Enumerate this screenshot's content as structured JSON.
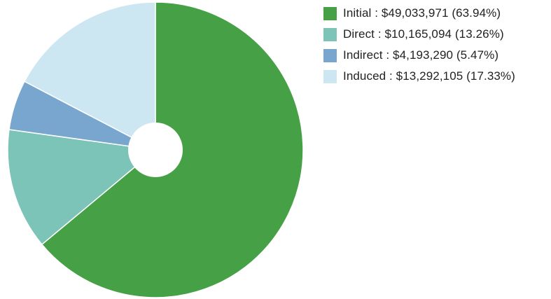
{
  "chart_data": {
    "type": "pie",
    "donut": true,
    "legend_position": "top-right",
    "categories": [
      "Initial",
      "Direct",
      "Indirect",
      "Induced"
    ],
    "values": [
      49033971,
      10165094,
      4193290,
      13292105
    ],
    "percents": [
      63.94,
      13.26,
      5.47,
      17.33
    ],
    "colors": [
      "#45a046",
      "#7cc3b8",
      "#79a6cf",
      "#cce7f2"
    ],
    "legend_labels": [
      "Initial : $49,033,971 (63.94%)",
      "Direct : $10,165,094 (13.26%)",
      "Indirect : $4,193,290 (5.47%)",
      "Induced : $13,292,105 (17.33%)"
    ]
  }
}
